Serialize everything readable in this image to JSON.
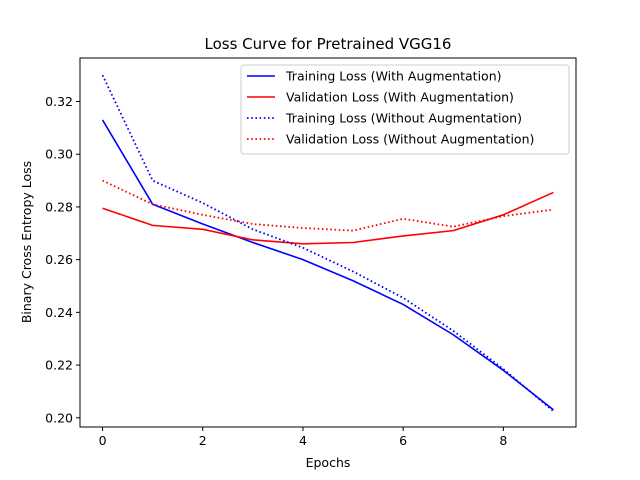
{
  "chart_data": {
    "type": "line",
    "title": "Loss Curve for Pretrained VGG16",
    "xlabel": "Epochs",
    "ylabel": "Binary Cross Entropy Loss",
    "xlim": [
      -0.45,
      9.45
    ],
    "ylim": [
      0.1965,
      0.3365
    ],
    "xticks": [
      0,
      2,
      4,
      6,
      8
    ],
    "yticks": [
      0.2,
      0.22,
      0.24,
      0.26,
      0.28,
      0.3,
      0.32
    ],
    "grid": false,
    "legend_position": "top-right",
    "x": [
      0,
      1,
      2,
      3,
      4,
      5,
      6,
      7,
      8,
      9
    ],
    "series": [
      {
        "name": "Training Loss (With Augmentation)",
        "color": "#0000ff",
        "style": "solid",
        "values": [
          0.313,
          0.281,
          0.2735,
          0.2665,
          0.26,
          0.252,
          0.243,
          0.2315,
          0.218,
          0.203
        ]
      },
      {
        "name": "Validation Loss (With Augmentation)",
        "color": "#ff0000",
        "style": "solid",
        "values": [
          0.2795,
          0.273,
          0.2715,
          0.2675,
          0.266,
          0.2665,
          0.269,
          0.271,
          0.277,
          0.2855
        ]
      },
      {
        "name": "Training Loss (Without Augmentation)",
        "color": "#0000ff",
        "style": "dotted",
        "values": [
          0.33,
          0.29,
          0.2815,
          0.2715,
          0.2645,
          0.2555,
          0.2455,
          0.233,
          0.2185,
          0.2025
        ]
      },
      {
        "name": "Validation Loss (Without Augmentation)",
        "color": "#ff0000",
        "style": "dotted",
        "values": [
          0.29,
          0.281,
          0.277,
          0.2735,
          0.272,
          0.271,
          0.2755,
          0.2725,
          0.2765,
          0.279
        ]
      }
    ]
  }
}
